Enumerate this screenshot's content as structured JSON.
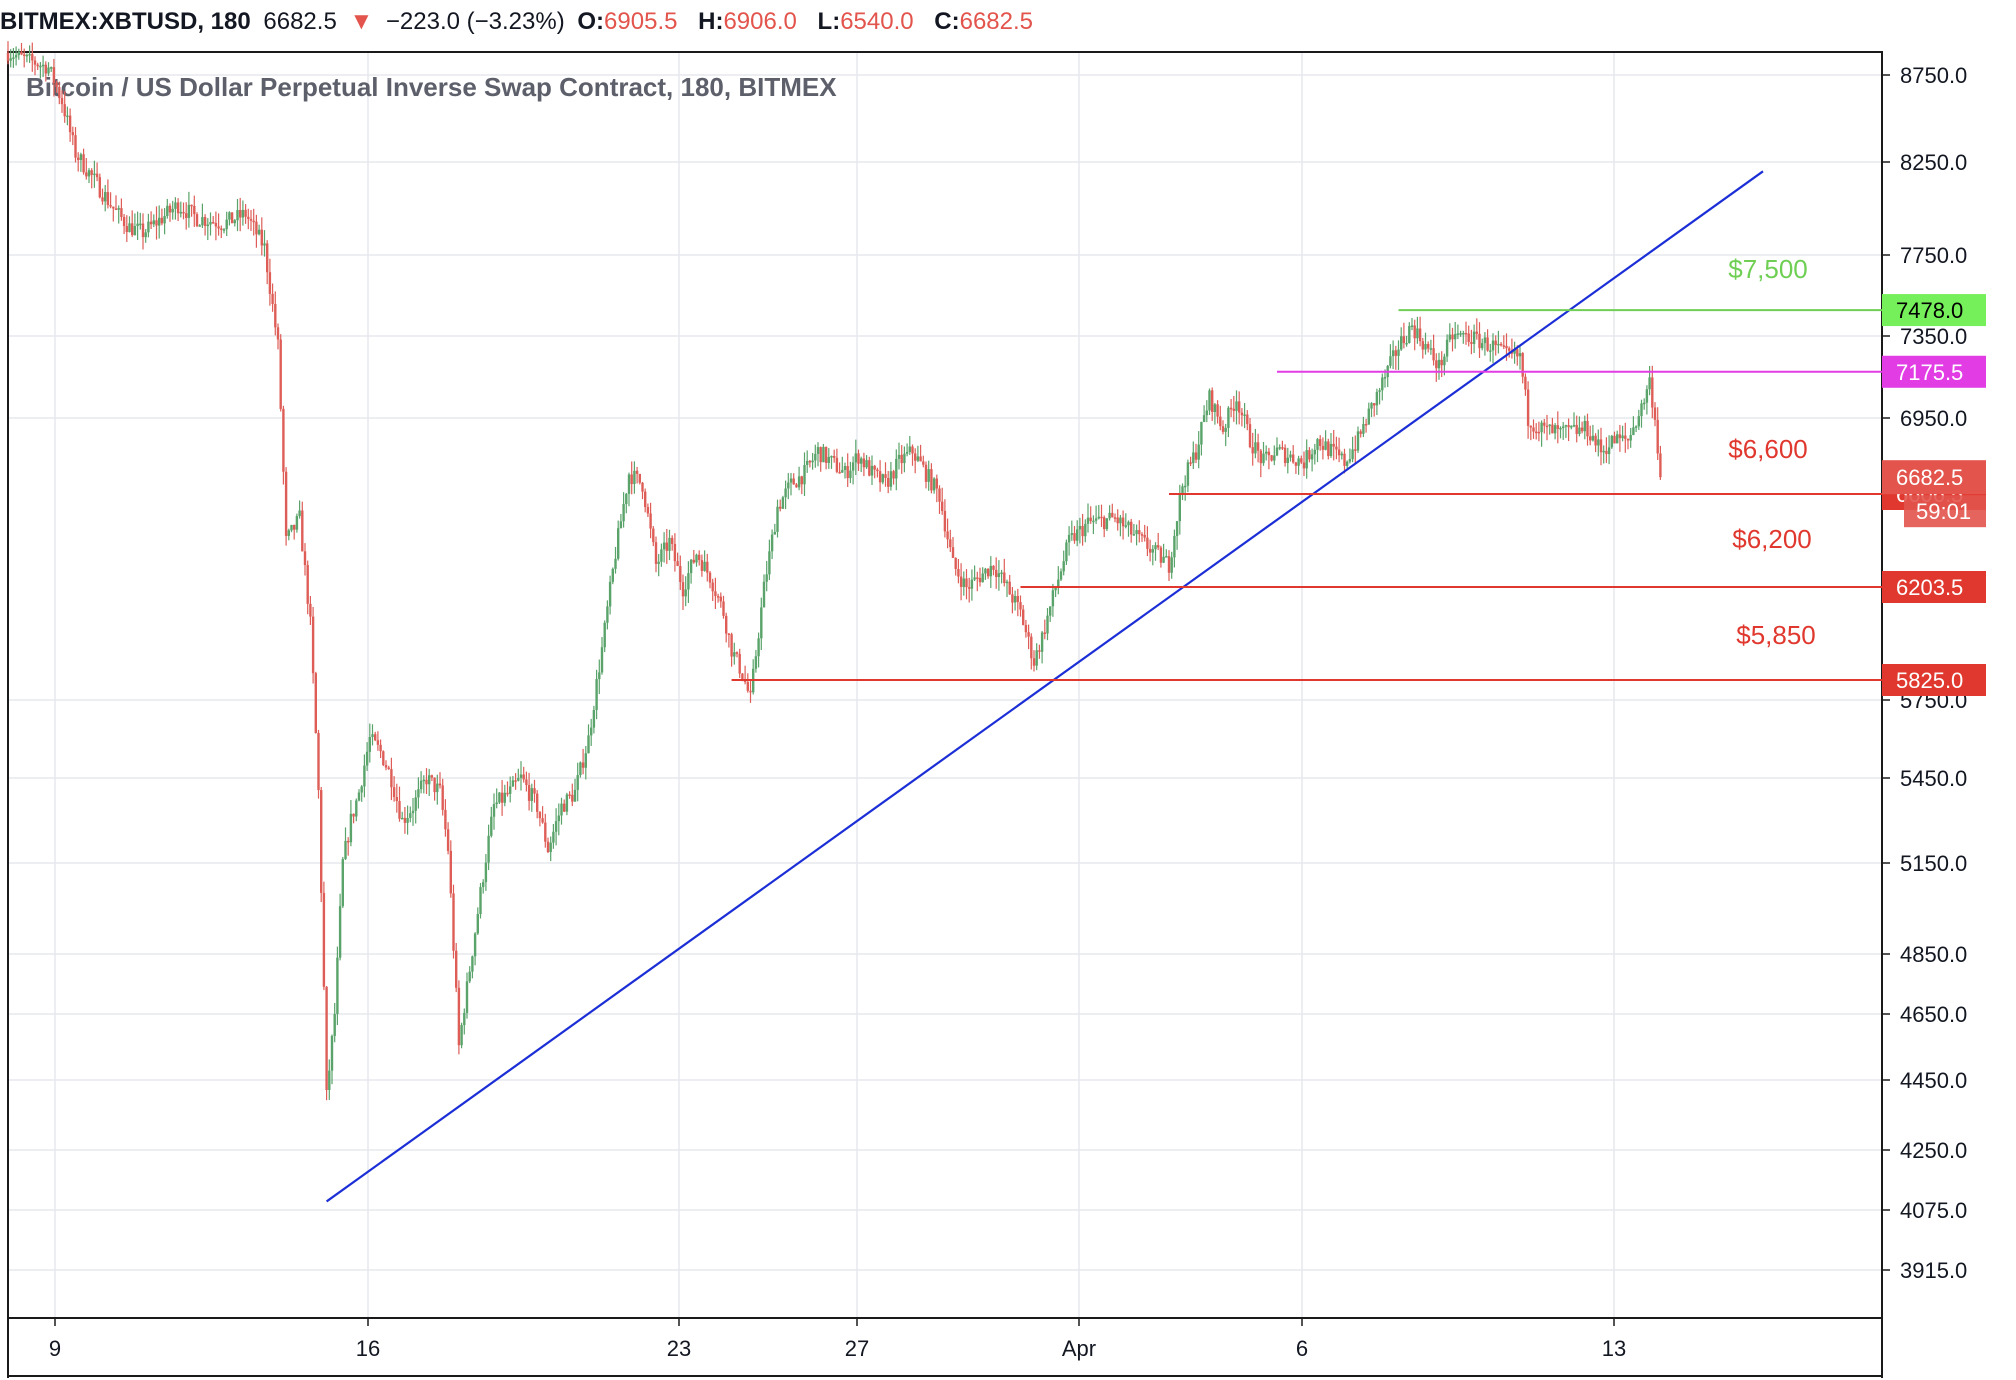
{
  "header": {
    "symbol": "BITMEX:XBTUSD, 180",
    "last": "6682.5",
    "arrow": "▼",
    "change": "−223.0 (−3.23%)",
    "o_label": "O:",
    "o_value": "6905.5",
    "h_label": "H:",
    "h_value": "6906.0",
    "l_label": "L:",
    "l_value": "6540.0",
    "c_label": "C:",
    "c_value": "6682.5"
  },
  "chart_data": {
    "type": "candlestick",
    "title": "Bitcoin / US Dollar Perpetual Inverse Swap Contract, 180, BITMEX",
    "y_ticks": [
      8750,
      8250,
      7750,
      7350,
      6950,
      5750,
      5450,
      5150,
      4850,
      4650,
      4450,
      4250,
      4075,
      3915
    ],
    "y_tick_labels": [
      "8750.0",
      "8250.0",
      "7750.0",
      "7350.0",
      "6950.0",
      "5750.0",
      "5450.0",
      "5150.0",
      "4850.0",
      "4650.0",
      "4450.0",
      "4250.0",
      "4075.0",
      "3915.0"
    ],
    "x_labels": [
      "9",
      "16",
      "23",
      "27",
      "Apr",
      "6",
      "13"
    ],
    "series_path": [
      [
        0,
        8900
      ],
      [
        15,
        8800
      ],
      [
        20,
        8600
      ],
      [
        25,
        8300
      ],
      [
        32,
        8150
      ],
      [
        40,
        7980
      ],
      [
        45,
        7900
      ],
      [
        50,
        7870
      ],
      [
        58,
        7960
      ],
      [
        63,
        8020
      ],
      [
        70,
        7950
      ],
      [
        80,
        7920
      ],
      [
        88,
        7970
      ],
      [
        95,
        7790
      ],
      [
        100,
        7300
      ],
      [
        103,
        6400
      ],
      [
        108,
        6500
      ],
      [
        112,
        6050
      ],
      [
        115,
        5400
      ],
      [
        118,
        4400
      ],
      [
        121,
        4650
      ],
      [
        124,
        5150
      ],
      [
        127,
        5300
      ],
      [
        130,
        5400
      ],
      [
        134,
        5600
      ],
      [
        138,
        5550
      ],
      [
        142,
        5450
      ],
      [
        146,
        5300
      ],
      [
        150,
        5350
      ],
      [
        155,
        5450
      ],
      [
        160,
        5400
      ],
      [
        163,
        5200
      ],
      [
        167,
        4550
      ],
      [
        171,
        4800
      ],
      [
        175,
        5050
      ],
      [
        180,
        5350
      ],
      [
        186,
        5400
      ],
      [
        190,
        5450
      ],
      [
        196,
        5350
      ],
      [
        200,
        5200
      ],
      [
        205,
        5350
      ],
      [
        210,
        5400
      ],
      [
        215,
        5600
      ],
      [
        220,
        5950
      ],
      [
        225,
        6350
      ],
      [
        230,
        6700
      ],
      [
        235,
        6650
      ],
      [
        240,
        6300
      ],
      [
        245,
        6400
      ],
      [
        250,
        6200
      ],
      [
        255,
        6350
      ],
      [
        260,
        6250
      ],
      [
        265,
        6100
      ],
      [
        268,
        5950
      ],
      [
        272,
        5850
      ],
      [
        275,
        5750
      ],
      [
        280,
        6200
      ],
      [
        285,
        6550
      ],
      [
        290,
        6650
      ],
      [
        295,
        6700
      ],
      [
        300,
        6800
      ],
      [
        305,
        6750
      ],
      [
        310,
        6700
      ],
      [
        315,
        6780
      ],
      [
        320,
        6700
      ],
      [
        325,
        6650
      ],
      [
        330,
        6750
      ],
      [
        335,
        6800
      ],
      [
        340,
        6700
      ],
      [
        345,
        6600
      ],
      [
        350,
        6300
      ],
      [
        355,
        6200
      ],
      [
        360,
        6250
      ],
      [
        365,
        6300
      ],
      [
        370,
        6200
      ],
      [
        375,
        6100
      ],
      [
        380,
        5900
      ],
      [
        383,
        6000
      ],
      [
        388,
        6200
      ],
      [
        393,
        6400
      ],
      [
        400,
        6480
      ],
      [
        410,
        6500
      ],
      [
        418,
        6420
      ],
      [
        425,
        6350
      ],
      [
        430,
        6300
      ],
      [
        435,
        6650
      ],
      [
        440,
        6800
      ],
      [
        445,
        7050
      ],
      [
        450,
        6900
      ],
      [
        455,
        7050
      ],
      [
        460,
        6850
      ],
      [
        465,
        6750
      ],
      [
        470,
        6800
      ],
      [
        480,
        6750
      ],
      [
        485,
        6850
      ],
      [
        490,
        6800
      ],
      [
        495,
        6750
      ],
      [
        500,
        6850
      ],
      [
        505,
        7000
      ],
      [
        510,
        7150
      ],
      [
        515,
        7300
      ],
      [
        520,
        7400
      ],
      [
        525,
        7300
      ],
      [
        530,
        7200
      ],
      [
        535,
        7350
      ],
      [
        540,
        7350
      ],
      [
        550,
        7300
      ],
      [
        555,
        7250
      ],
      [
        560,
        7250
      ],
      [
        563,
        6950
      ],
      [
        568,
        6900
      ],
      [
        575,
        6880
      ],
      [
        585,
        6900
      ],
      [
        590,
        6800
      ],
      [
        595,
        6850
      ],
      [
        600,
        6850
      ],
      [
        605,
        7000
      ],
      [
        608,
        7130
      ],
      [
        610,
        6950
      ],
      [
        612,
        6682
      ]
    ],
    "trendline": {
      "from": [
        118,
        4100
      ],
      "to": [
        650,
        8200
      ]
    },
    "price_lines": [
      {
        "label": "$7,500",
        "value": 7478.0,
        "tag": "7478.0",
        "color": "#6fcf54",
        "from": 515,
        "tag_bg": "#76f05a",
        "tag_fg": "#000000"
      },
      {
        "label": "",
        "value": 7175.5,
        "tag": "7175.5",
        "color": "#e23ce5",
        "from": 470,
        "tag_bg": "#e23ce5",
        "tag_fg": "#ffffff"
      },
      {
        "label": "$6,600",
        "value": 6606.5,
        "tag": "6606.5",
        "color": "#e0382e",
        "from": 430,
        "tag_bg": "#e0382e",
        "tag_fg": "#ffffff"
      },
      {
        "label": "$6,200",
        "value": 6203.5,
        "tag": "6203.5",
        "color": "#e0382e",
        "from": 375,
        "tag_bg": "#e0382e",
        "tag_fg": "#ffffff"
      },
      {
        "label": "$5,850",
        "value": 5825.0,
        "tag": "5825.0",
        "color": "#e0382e",
        "from": 268,
        "tag_bg": "#e0382e",
        "tag_fg": "#ffffff"
      }
    ],
    "last_price": {
      "value": 6682.5,
      "tag": "6682.5",
      "countdown": "59:01",
      "color": "#e2544c"
    },
    "colors": {
      "up": "#5aa36a",
      "down": "#de5e57",
      "trend": "#1c2fd6",
      "grid": "#e5e8ee"
    },
    "grid": true
  }
}
